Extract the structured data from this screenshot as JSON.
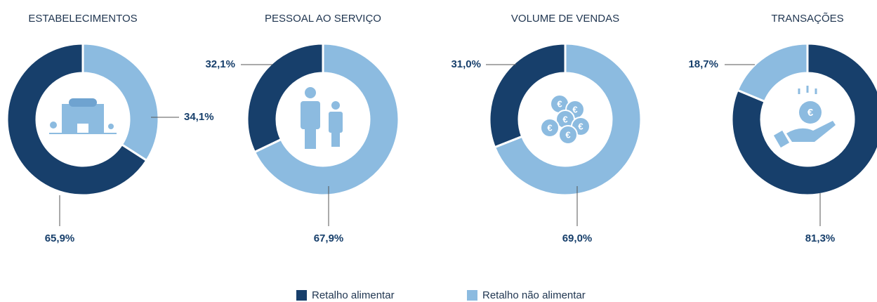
{
  "chart_data": [
    {
      "type": "pie",
      "title": "ESTABELECIMENTOS",
      "categories": [
        "Retalho alimentar",
        "Retalho não alimentar"
      ],
      "values": [
        65.9,
        34.1
      ],
      "value_labels": [
        "65,9%",
        "34,1%"
      ],
      "colors": [
        "#173f6b",
        "#8cbbe0"
      ],
      "direction": "counterclockwise"
    },
    {
      "type": "pie",
      "title": "PESSOAL AO SERVIÇO",
      "categories": [
        "Retalho alimentar",
        "Retalho não alimentar"
      ],
      "values": [
        32.1,
        67.9
      ],
      "value_labels": [
        "32,1%",
        "67,9%"
      ],
      "colors": [
        "#173f6b",
        "#8cbbe0"
      ],
      "direction": "counterclockwise"
    },
    {
      "type": "pie",
      "title": "VOLUME DE VENDAS",
      "categories": [
        "Retalho alimentar",
        "Retalho não alimentar"
      ],
      "values": [
        31.0,
        69.0
      ],
      "value_labels": [
        "31,0%",
        "69,0%"
      ],
      "colors": [
        "#173f6b",
        "#8cbbe0"
      ],
      "direction": "counterclockwise"
    },
    {
      "type": "pie",
      "title": "TRANSAÇÕES",
      "categories": [
        "Retalho alimentar",
        "Retalho não alimentar"
      ],
      "values": [
        81.3,
        18.7
      ],
      "value_labels": [
        "81,3%",
        "18,7%"
      ],
      "colors": [
        "#173f6b",
        "#8cbbe0"
      ],
      "direction": "clockwise"
    }
  ]
}
